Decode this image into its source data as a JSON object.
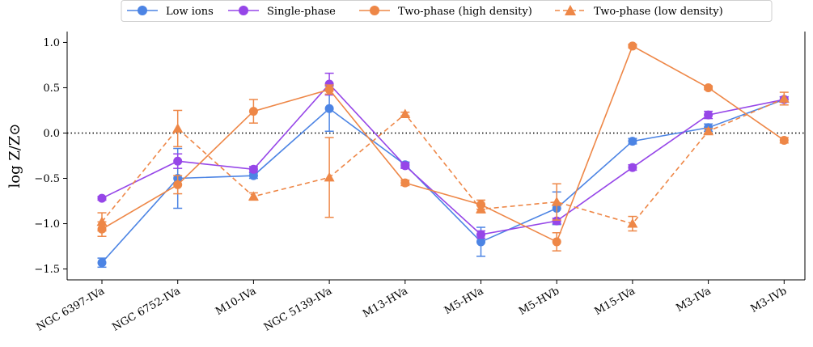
{
  "chart_data": {
    "type": "line",
    "title": "",
    "xlabel": "",
    "ylabel": "log Z/Z⊙",
    "ylim": [
      -1.62,
      1.12
    ],
    "yticks": [
      -1.5,
      -1.0,
      -0.5,
      0.0,
      0.5,
      1.0
    ],
    "yticklabels": [
      "−1.5",
      "−1.0",
      "−0.5",
      "0.0",
      "0.5",
      "1.0"
    ],
    "categories": [
      "NGC 6397-IVa",
      "NGC 6752-IVa",
      "M10-IVa",
      "NGC 5139-IVa",
      "M13-HVa",
      "M5-HVa",
      "M5-HVb",
      "M15-IVa",
      "M3-IVa",
      "M3-IVb"
    ],
    "reference_line": {
      "y": 0.0,
      "style": "dotted"
    },
    "legend_position": "top-center",
    "grid": false,
    "series": [
      {
        "name": "Low ions",
        "color": "#4c84e4",
        "marker": "circle",
        "dashed": false,
        "values": [
          -1.43,
          -0.5,
          -0.47,
          0.27,
          -0.35,
          -1.2,
          -0.83,
          -0.09,
          0.06,
          0.37
        ],
        "err": [
          0.05,
          0.33,
          0.03,
          0.25,
          0.03,
          0.16,
          0.18,
          0.03,
          0.04,
          0.03
        ]
      },
      {
        "name": "Single-phase",
        "color": "#9646e8",
        "marker": "circle",
        "dashed": false,
        "values": [
          -0.72,
          -0.31,
          -0.4,
          0.54,
          -0.36,
          -1.12,
          -0.97,
          -0.38,
          0.2,
          0.37
        ],
        "err": [
          0.02,
          0.08,
          0.03,
          0.12,
          0.03,
          0.04,
          0.03,
          0.03,
          0.04,
          0.03
        ]
      },
      {
        "name": "Two-phase (high density)",
        "color": "#ee8747",
        "marker": "circle",
        "dashed": false,
        "values": [
          -1.06,
          -0.57,
          0.24,
          0.48,
          -0.55,
          -0.79,
          -1.2,
          0.96,
          0.5,
          -0.08
        ],
        "err": [
          0.08,
          0.1,
          0.13,
          0.05,
          0.03,
          0.05,
          0.1,
          0.02,
          0.02,
          0.03
        ]
      },
      {
        "name": "Two-phase (low density)",
        "color": "#ee8747",
        "marker": "triangle",
        "dashed": true,
        "values": [
          -0.98,
          0.05,
          -0.7,
          -0.49,
          0.21,
          -0.84,
          -0.76,
          -1.0,
          0.02,
          0.38
        ],
        "err": [
          0.1,
          0.2,
          0.04,
          0.44,
          0.02,
          0.04,
          0.2,
          0.08,
          0.03,
          0.07
        ]
      }
    ]
  }
}
